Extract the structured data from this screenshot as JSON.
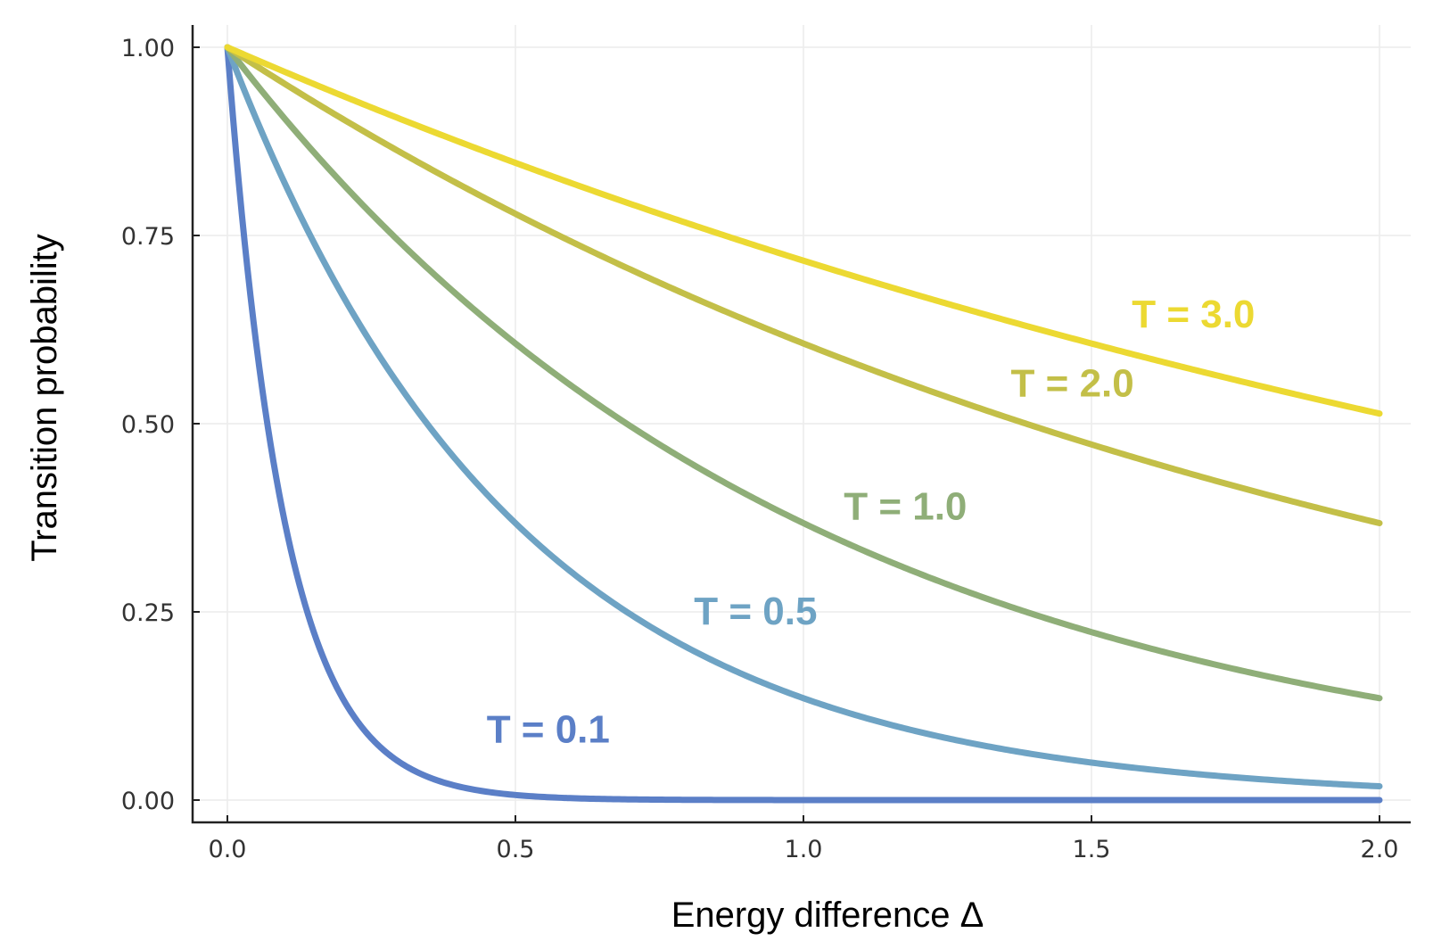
{
  "chart_data": {
    "type": "line",
    "xlabel": "Energy difference Δ",
    "ylabel": "Transition probability",
    "xlim": [
      0,
      2
    ],
    "ylim": [
      0,
      1
    ],
    "x_ticks": [
      "0.0",
      "0.5",
      "1.0",
      "1.5",
      "2.0"
    ],
    "y_ticks": [
      "0.00",
      "0.25",
      "0.50",
      "0.75",
      "1.00"
    ],
    "grid": true,
    "legend": "none",
    "function": "exp(-Δ/T)",
    "series": [
      {
        "name": "T = 0.1",
        "T": 0.1,
        "color": "#5b7fc7",
        "x": [
          0,
          0.1,
          0.2,
          0.3,
          0.4,
          0.5,
          0.75,
          1.0,
          1.5,
          2.0
        ],
        "y": [
          1.0,
          0.368,
          0.135,
          0.05,
          0.018,
          0.007,
          0.001,
          0.0,
          0.0,
          0.0
        ]
      },
      {
        "name": "T = 0.5",
        "T": 0.5,
        "color": "#6ea3c4",
        "x": [
          0,
          0.25,
          0.5,
          0.75,
          1.0,
          1.25,
          1.5,
          1.75,
          2.0
        ],
        "y": [
          1.0,
          0.607,
          0.368,
          0.223,
          0.135,
          0.082,
          0.05,
          0.03,
          0.018
        ]
      },
      {
        "name": "T = 1.0",
        "T": 1.0,
        "color": "#8fae78",
        "x": [
          0,
          0.25,
          0.5,
          0.75,
          1.0,
          1.25,
          1.5,
          1.75,
          2.0
        ],
        "y": [
          1.0,
          0.779,
          0.607,
          0.472,
          0.368,
          0.287,
          0.223,
          0.174,
          0.135
        ]
      },
      {
        "name": "T = 2.0",
        "T": 2.0,
        "color": "#c3bf48",
        "x": [
          0,
          0.25,
          0.5,
          0.75,
          1.0,
          1.25,
          1.5,
          1.75,
          2.0
        ],
        "y": [
          1.0,
          0.882,
          0.779,
          0.687,
          0.607,
          0.535,
          0.472,
          0.417,
          0.368
        ]
      },
      {
        "name": "T = 3.0",
        "T": 3.0,
        "color": "#ecd932",
        "x": [
          0,
          0.25,
          0.5,
          0.75,
          1.0,
          1.25,
          1.5,
          1.75,
          2.0
        ],
        "y": [
          1.0,
          0.92,
          0.846,
          0.779,
          0.717,
          0.659,
          0.607,
          0.558,
          0.513
        ]
      }
    ]
  }
}
